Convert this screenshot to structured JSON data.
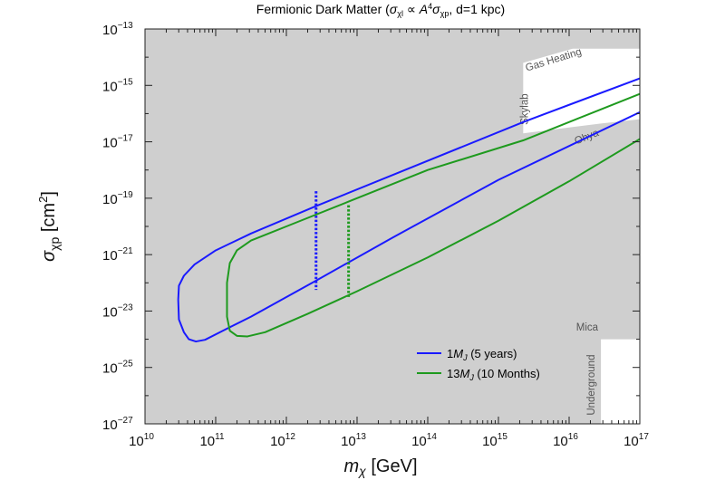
{
  "chart_data": {
    "type": "line",
    "title": "Fermionic Dark Matter (σχl ∝ A⁴σχp,  d=1 kpc)",
    "title_parts": {
      "prefix": "Fermionic Dark Matter (",
      "sigma": "σ",
      "sub1": "χl",
      "mid": " ∝ ",
      "A": "A",
      "sup4": "4",
      "sigma2": "σ",
      "sub2": "χp",
      "suffix": ",  d=1 kpc)"
    },
    "xlabel": "mχ [GeV]",
    "xlabel_parts": {
      "m": "m",
      "chi": "χ",
      "unit": " [GeV]"
    },
    "ylabel": "σχp [cm²]",
    "ylabel_parts": {
      "sigma": "σ",
      "sub": "χp",
      "unit": " [cm",
      "sup": "2",
      "close": "]"
    },
    "x_scale": "log10",
    "y_scale": "log10",
    "xlim_log10": [
      10,
      17
    ],
    "ylim_log10": [
      -27,
      -13
    ],
    "x_ticks": [
      {
        "base": "10",
        "exp": "10",
        "v": 10
      },
      {
        "base": "10",
        "exp": "11",
        "v": 11
      },
      {
        "base": "10",
        "exp": "12",
        "v": 12
      },
      {
        "base": "10",
        "exp": "13",
        "v": 13
      },
      {
        "base": "10",
        "exp": "14",
        "v": 14
      },
      {
        "base": "10",
        "exp": "15",
        "v": 15
      },
      {
        "base": "10",
        "exp": "16",
        "v": 16
      },
      {
        "base": "10",
        "exp": "17",
        "v": 17
      }
    ],
    "y_ticks": [
      {
        "base": "10",
        "exp": "−13",
        "v": -13
      },
      {
        "base": "10",
        "exp": "−15",
        "v": -15
      },
      {
        "base": "10",
        "exp": "−17",
        "v": -17
      },
      {
        "base": "10",
        "exp": "−19",
        "v": -19
      },
      {
        "base": "10",
        "exp": "−21",
        "v": -21
      },
      {
        "base": "10",
        "exp": "−23",
        "v": -23
      },
      {
        "base": "10",
        "exp": "−25",
        "v": -25
      },
      {
        "base": "10",
        "exp": "−27",
        "v": -27
      }
    ],
    "excluded_region_color": "#cfcfcf",
    "allowed_windows": [
      {
        "name": "upper-window",
        "polygon_log10": [
          [
            15.35,
            -16.3
          ],
          [
            15.35,
            -14.2
          ],
          [
            16.05,
            -13.7
          ],
          [
            17.0,
            -13.7
          ],
          [
            17.0,
            -16.2
          ],
          [
            16.45,
            -16.35
          ],
          [
            15.35,
            -16.7
          ]
        ]
      },
      {
        "name": "mica-window",
        "polygon_log10": [
          [
            16.45,
            -27.0
          ],
          [
            16.45,
            -24.0
          ],
          [
            17.0,
            -24.0
          ],
          [
            17.0,
            -27.0
          ]
        ]
      }
    ],
    "region_labels": [
      {
        "name": "gas-heating",
        "text": "Gas Heating",
        "x": 15.4,
        "y": -14.5,
        "angle_deg": -17
      },
      {
        "name": "skylab",
        "text": "Skylab",
        "x": 15.42,
        "y": -16.4,
        "angle_deg": -90
      },
      {
        "name": "ohya",
        "text": "Ohya",
        "x": 16.1,
        "y": -17.1,
        "angle_deg": -22
      },
      {
        "name": "mica",
        "text": "Mica",
        "x": 16.1,
        "y": -23.7,
        "angle_deg": 0
      },
      {
        "name": "underground",
        "text": "Underground",
        "x": 16.36,
        "y": -26.7,
        "angle_deg": -90
      }
    ],
    "series": [
      {
        "name": "1MJ (5 years)",
        "label_parts": {
          "pre": "1",
          "M": "M",
          "sub": "J",
          "post": " (5 years)"
        },
        "color": "#1a1aff",
        "points_log10": [
          [
            17.0,
            -14.75
          ],
          [
            15.35,
            -16.3
          ],
          [
            12.4,
            -19.3
          ],
          [
            11.5,
            -20.25
          ],
          [
            11.0,
            -20.85
          ],
          [
            10.7,
            -21.35
          ],
          [
            10.55,
            -21.75
          ],
          [
            10.48,
            -22.1
          ],
          [
            10.47,
            -22.6
          ],
          [
            10.48,
            -23.3
          ],
          [
            10.55,
            -23.75
          ],
          [
            10.62,
            -24.0
          ],
          [
            10.72,
            -24.08
          ],
          [
            10.85,
            -24.02
          ],
          [
            11.1,
            -23.7
          ],
          [
            11.5,
            -23.2
          ],
          [
            12.4,
            -21.95
          ],
          [
            13.5,
            -20.4
          ],
          [
            15.0,
            -18.35
          ],
          [
            17.0,
            -15.95
          ]
        ],
        "dotted_cut": {
          "x": 12.42,
          "y_top": -18.75,
          "y_bottom": -22.25
        }
      },
      {
        "name": "13MJ (10 Months)",
        "label_parts": {
          "pre": "13",
          "M": "M",
          "sub": "J",
          "post": " (10 Months)"
        },
        "color": "#1e9a1e",
        "points_log10": [
          [
            17.0,
            -15.3
          ],
          [
            15.35,
            -16.95
          ],
          [
            14.0,
            -18.0
          ],
          [
            12.9,
            -19.1
          ],
          [
            12.0,
            -20.0
          ],
          [
            11.5,
            -20.5
          ],
          [
            11.3,
            -20.85
          ],
          [
            11.2,
            -21.3
          ],
          [
            11.16,
            -22.0
          ],
          [
            11.16,
            -23.2
          ],
          [
            11.2,
            -23.7
          ],
          [
            11.3,
            -23.88
          ],
          [
            11.45,
            -23.9
          ],
          [
            11.7,
            -23.75
          ],
          [
            12.3,
            -23.1
          ],
          [
            13.0,
            -22.3
          ],
          [
            14.0,
            -21.1
          ],
          [
            15.0,
            -19.8
          ],
          [
            16.0,
            -18.4
          ],
          [
            17.0,
            -16.9
          ]
        ],
        "dotted_cut": {
          "x": 12.88,
          "y_top": -19.25,
          "y_bottom": -22.5
        }
      }
    ],
    "legend_position": "bottom-center"
  }
}
